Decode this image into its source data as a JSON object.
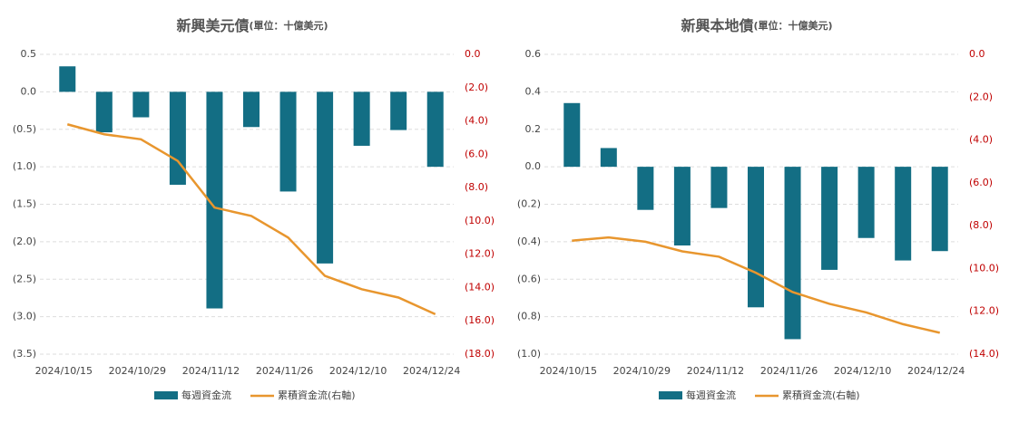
{
  "chart_data": [
    {
      "type": "combo",
      "title": "新興美元債",
      "subtitle": "(單位：十億美元)",
      "categories": [
        "2024/10/15",
        null,
        "2024/10/29",
        null,
        "2024/11/12",
        null,
        "2024/11/26",
        null,
        "2024/12/10",
        null,
        "2024/12/24"
      ],
      "series": [
        {
          "name": "每週資金流",
          "color": "#136e84",
          "type": "bar",
          "values": [
            0.34,
            -0.54,
            -0.34,
            -1.24,
            -2.89,
            -0.47,
            -1.33,
            -2.29,
            -0.72,
            -0.51,
            -1.0
          ]
        },
        {
          "name": "累積資金流(右軸)",
          "color": "#e8962e",
          "type": "line",
          "axis": "y2",
          "values": [
            -4.2,
            -4.8,
            -5.1,
            -6.4,
            -9.2,
            -9.7,
            -11.0,
            -13.3,
            -14.1,
            -14.6,
            -15.6
          ]
        }
      ],
      "ylim": [
        -3.5,
        0.5
      ],
      "yticks": [
        0.5,
        {
          "value": 0,
          "label": "0.0"
        },
        {
          "value": -0.5,
          "label": "(0.5)"
        },
        {
          "value": -1,
          "label": "(1.0)"
        },
        {
          "value": -1.5,
          "label": "(1.5)"
        },
        {
          "value": -2,
          "label": "(2.0)"
        },
        {
          "value": -2.5,
          "label": "(2.5)"
        },
        {
          "value": -3,
          "label": "(3.0)"
        },
        {
          "value": -3.5,
          "label": "(3.5)"
        }
      ],
      "y2lim": [
        -18,
        0
      ],
      "y2ticks": [
        {
          "value": 0,
          "label": "0.0"
        },
        {
          "value": -2,
          "label": "(2.0)"
        },
        {
          "value": -4,
          "label": "(4.0)"
        },
        {
          "value": -6,
          "label": "(6.0)"
        },
        {
          "value": -8,
          "label": "(8.0)"
        },
        {
          "value": -10,
          "label": "(10.0)"
        },
        {
          "value": -12,
          "label": "(12.0)"
        },
        {
          "value": -14,
          "label": "(14.0)"
        },
        {
          "value": -16,
          "label": "(16.0)"
        },
        {
          "value": -18,
          "label": "(18.0)"
        }
      ],
      "grid": true,
      "legend": "bottom"
    },
    {
      "type": "combo",
      "title": "新興本地債",
      "subtitle": "(單位：十億美元)",
      "categories": [
        "2024/10/15",
        null,
        "2024/10/29",
        null,
        "2024/11/12",
        null,
        "2024/11/26",
        null,
        "2024/12/10",
        null,
        "2024/12/24"
      ],
      "series": [
        {
          "name": "每週資金流",
          "color": "#136e84",
          "type": "bar",
          "values": [
            0.34,
            0.1,
            -0.23,
            -0.42,
            -0.22,
            -0.75,
            -0.92,
            -0.55,
            -0.38,
            -0.5,
            -0.45
          ]
        },
        {
          "name": "累積資金流(右軸)",
          "color": "#e8962e",
          "type": "line",
          "axis": "y2",
          "values": [
            -8.7,
            -8.55,
            -8.75,
            -9.2,
            -9.45,
            -10.2,
            -11.1,
            -11.65,
            -12.05,
            -12.6,
            -13.0
          ]
        }
      ],
      "ylim": [
        -1,
        0.6
      ],
      "yticks": [
        0.6,
        0.4,
        0.2,
        {
          "value": 0,
          "label": "0.0"
        },
        {
          "value": -0.2,
          "label": "(0.2)"
        },
        {
          "value": -0.4,
          "label": "(0.4)"
        },
        {
          "value": -0.6,
          "label": "(0.6)"
        },
        {
          "value": -0.8,
          "label": "(0.8)"
        },
        {
          "value": -1,
          "label": "(1.0)"
        }
      ],
      "y2lim": [
        -14,
        0
      ],
      "y2ticks": [
        {
          "value": 0,
          "label": "0.0"
        },
        {
          "value": -2,
          "label": "(2.0)"
        },
        {
          "value": -4,
          "label": "(4.0)"
        },
        {
          "value": -6,
          "label": "(6.0)"
        },
        {
          "value": -8,
          "label": "(8.0)"
        },
        {
          "value": -10,
          "label": "(10.0)"
        },
        {
          "value": -12,
          "label": "(12.0)"
        },
        {
          "value": -14,
          "label": "(14.0)"
        }
      ],
      "grid": true,
      "legend": "bottom"
    }
  ]
}
